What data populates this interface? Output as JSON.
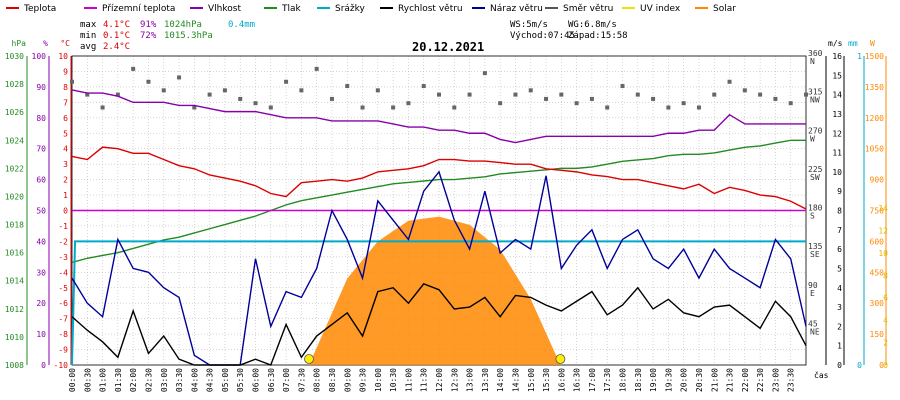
{
  "chart_data": {
    "type": "line",
    "title": "20.12.2021",
    "legend": [
      {
        "name": "Teplota",
        "color": "#dd0000"
      },
      {
        "name": "Přízemní teplota",
        "color": "#cc00cc"
      },
      {
        "name": "Vlhkost",
        "color": "#8800aa"
      },
      {
        "name": "Tlak",
        "color": "#228b22"
      },
      {
        "name": "Srážky",
        "color": "#00aacc"
      },
      {
        "name": "Rychlost větru",
        "color": "#000000"
      },
      {
        "name": "Náraz větru",
        "color": "#000099"
      },
      {
        "name": "Směr větru",
        "color": "#555555"
      },
      {
        "name": "UV index",
        "color": "#e6e600"
      },
      {
        "name": "Solar",
        "color": "#ff8800"
      }
    ],
    "stats": {
      "max_label": "max",
      "max_temp": "4.1°C",
      "max_hum": "91%",
      "max_press": "1024hPa",
      "rain": "0.4mm",
      "min_label": "min",
      "min_temp": "0.1°C",
      "min_hum": "72%",
      "min_press": "1015.3hPa",
      "avg_label": "avg",
      "avg_temp": "2.4°C",
      "ws": "WS:5m/s",
      "wg": "WG:6.8m/s",
      "sunrise": "Východ:07:45",
      "sunset": "Západ:15:58"
    },
    "axes": {
      "left": [
        {
          "unit": "hPa",
          "color": "#228b22",
          "ticks": [
            "1030",
            "1028",
            "1026",
            "1024",
            "1022",
            "1020",
            "1018",
            "1016",
            "1014",
            "1012",
            "1010",
            "1008"
          ]
        },
        {
          "unit": "%",
          "color": "#8800aa",
          "ticks": [
            "100",
            "90",
            "80",
            "70",
            "60",
            "50",
            "40",
            "30",
            "20",
            "10",
            "0"
          ]
        },
        {
          "unit": "°C",
          "color": "#dd0000",
          "ticks": [
            "10",
            "9",
            "8",
            "7",
            "6",
            "5",
            "4",
            "3",
            "2",
            "1",
            "0",
            "-1",
            "-2",
            "-3",
            "-4",
            "-5",
            "-6",
            "-7",
            "-8",
            "-9",
            "-10"
          ]
        }
      ],
      "right": [
        {
          "unit": "m/s",
          "color": "#000000",
          "ticks": [
            "16",
            "15",
            "14",
            "13",
            "12",
            "11",
            "10",
            "9",
            "8",
            "7",
            "6",
            "5",
            "4",
            "3",
            "2",
            "1",
            "0"
          ]
        },
        {
          "unit": "mm",
          "color": "#00aacc",
          "ticks": [
            "1",
            "0"
          ]
        },
        {
          "unit": "W",
          "color": "#ff8800",
          "ticks": [
            "1500",
            "1350",
            "1200",
            "1050",
            "900",
            "750",
            "600",
            "450",
            "300",
            "150",
            "0"
          ]
        }
      ],
      "wind_dir": [
        {
          "deg": "360",
          "dir": "N"
        },
        {
          "deg": "315",
          "dir": "NW"
        },
        {
          "deg": "270",
          "dir": "W"
        },
        {
          "deg": "225",
          "dir": "SW"
        },
        {
          "deg": "180",
          "dir": "S"
        },
        {
          "deg": "135",
          "dir": "SE"
        },
        {
          "deg": "90",
          "dir": "E"
        },
        {
          "deg": "45",
          "dir": "NE"
        }
      ],
      "uv_ticks": [
        "14",
        "12",
        "10",
        "8",
        "6",
        "4",
        "2",
        "0"
      ],
      "x_label": "čas",
      "x_ticks": [
        "00:00",
        "00:30",
        "01:00",
        "01:30",
        "02:00",
        "02:30",
        "03:00",
        "03:30",
        "04:00",
        "04:30",
        "05:00",
        "05:30",
        "06:00",
        "06:30",
        "07:00",
        "07:30",
        "08:00",
        "08:30",
        "09:00",
        "09:30",
        "10:00",
        "10:30",
        "11:00",
        "11:30",
        "12:00",
        "12:30",
        "13:00",
        "13:30",
        "14:00",
        "14:30",
        "15:00",
        "15:30",
        "16:00",
        "16:30",
        "17:00",
        "17:30",
        "18:00",
        "18:30",
        "19:00",
        "19:30",
        "20:00",
        "20:30",
        "21:00",
        "21:30",
        "22:00",
        "22:30",
        "23:00",
        "23:30"
      ]
    },
    "x_range_hours": [
      0,
      24
    ],
    "series": [
      {
        "name": "Teplota",
        "color": "#dd0000",
        "x": [
          0,
          0.5,
          1,
          1.5,
          2,
          2.5,
          3,
          3.5,
          4,
          4.5,
          5,
          5.5,
          6,
          6.5,
          7,
          7.5,
          8,
          8.5,
          9,
          9.5,
          10,
          10.5,
          11,
          11.5,
          12,
          12.5,
          13,
          13.5,
          14,
          14.5,
          15,
          15.5,
          16,
          16.5,
          17,
          17.5,
          18,
          18.5,
          19,
          19.5,
          20,
          20.5,
          21,
          21.5,
          22,
          22.5,
          23,
          23.5,
          24
        ],
        "y": [
          3.5,
          3.3,
          4.1,
          4.0,
          3.7,
          3.7,
          3.3,
          2.9,
          2.7,
          2.3,
          2.1,
          1.9,
          1.6,
          1.1,
          0.9,
          1.8,
          1.9,
          2.0,
          1.9,
          2.1,
          2.5,
          2.6,
          2.7,
          2.9,
          3.3,
          3.3,
          3.2,
          3.2,
          3.1,
          3.0,
          3.0,
          2.7,
          2.6,
          2.5,
          2.3,
          2.2,
          2.0,
          2.0,
          1.8,
          1.6,
          1.4,
          1.7,
          1.1,
          1.5,
          1.3,
          1.0,
          0.9,
          0.6,
          0.1
        ]
      },
      {
        "name": "Přízemní teplota",
        "color": "#cc00cc",
        "x": [
          0,
          24
        ],
        "y": [
          0,
          0
        ]
      },
      {
        "name": "Vlhkost",
        "color": "#8800aa",
        "x": [
          0,
          0.5,
          1,
          1.5,
          2,
          2.5,
          3,
          3.5,
          4,
          4.5,
          5,
          5.5,
          6,
          6.5,
          7,
          7.5,
          8,
          8.5,
          9,
          9.5,
          10,
          10.5,
          11,
          11.5,
          12,
          12.5,
          13,
          13.5,
          14,
          14.5,
          15,
          15.5,
          16,
          16.5,
          17,
          17.5,
          18,
          18.5,
          19,
          19.5,
          20,
          20.5,
          21,
          21.5,
          22,
          22.5,
          23,
          23.5,
          24
        ],
        "y": [
          89,
          88,
          88,
          87,
          85,
          85,
          85,
          84,
          84,
          83,
          82,
          82,
          82,
          81,
          80,
          80,
          80,
          79,
          79,
          79,
          79,
          78,
          77,
          77,
          76,
          76,
          75,
          75,
          73,
          72,
          73,
          74,
          74,
          74,
          74,
          74,
          74,
          74,
          74,
          75,
          75,
          76,
          76,
          81,
          78,
          78,
          78,
          78,
          78
        ]
      },
      {
        "name": "Tlak",
        "color": "#228b22",
        "x": [
          0,
          0.5,
          1,
          1.5,
          2,
          2.5,
          3,
          3.5,
          4,
          4.5,
          5,
          5.5,
          6,
          6.5,
          7,
          7.5,
          8,
          8.5,
          9,
          9.5,
          10,
          10.5,
          11,
          11.5,
          12,
          12.5,
          13,
          13.5,
          14,
          14.5,
          15,
          15.5,
          16,
          16.5,
          17,
          17.5,
          18,
          18.5,
          19,
          19.5,
          20,
          20.5,
          21,
          21.5,
          22,
          22.5,
          23,
          23.5,
          24
        ],
        "y": [
          1015.3,
          1015.6,
          1015.8,
          1016.0,
          1016.3,
          1016.6,
          1016.9,
          1017.1,
          1017.4,
          1017.7,
          1018.0,
          1018.3,
          1018.6,
          1019.0,
          1019.4,
          1019.7,
          1019.9,
          1020.1,
          1020.3,
          1020.5,
          1020.7,
          1020.9,
          1021.0,
          1021.1,
          1021.2,
          1021.2,
          1021.3,
          1021.4,
          1021.6,
          1021.7,
          1021.8,
          1021.9,
          1022.0,
          1022.0,
          1022.1,
          1022.3,
          1022.5,
          1022.6,
          1022.7,
          1022.9,
          1023.0,
          1023.0,
          1023.1,
          1023.3,
          1023.5,
          1023.6,
          1023.8,
          1024.0,
          1024.0
        ]
      },
      {
        "name": "Srážky",
        "color": "#00aacc",
        "x": [
          0,
          0.1,
          24
        ],
        "y": [
          0,
          0.4,
          0.4
        ]
      },
      {
        "name": "Rychlost větru",
        "color": "#000000",
        "x": [
          0,
          0.5,
          1,
          1.5,
          2,
          2.5,
          3,
          3.5,
          4,
          4.5,
          5,
          5.5,
          6,
          6.5,
          7,
          7.5,
          8,
          8.5,
          9,
          9.5,
          10,
          10.5,
          11,
          11.5,
          12,
          12.5,
          13,
          13.5,
          14,
          14.5,
          15,
          15.5,
          16,
          16.5,
          17,
          17.5,
          18,
          18.5,
          19,
          19.5,
          20,
          20.5,
          21,
          21.5,
          22,
          22.5,
          23,
          23.5,
          24
        ],
        "y": [
          2.5,
          1.8,
          1.2,
          0.4,
          2.8,
          0.6,
          1.5,
          0.3,
          0,
          0,
          0,
          0,
          0.3,
          0,
          2.1,
          0.4,
          1.5,
          2.1,
          2.7,
          1.5,
          3.8,
          4.0,
          3.2,
          4.2,
          3.9,
          2.9,
          3.0,
          3.5,
          2.5,
          3.6,
          3.5,
          3.1,
          2.8,
          3.3,
          3.8,
          2.6,
          3.1,
          4.0,
          2.9,
          3.4,
          2.7,
          2.5,
          3.0,
          3.1,
          2.5,
          1.9,
          3.3,
          2.5,
          1.0
        ]
      },
      {
        "name": "Náraz větru",
        "color": "#000099",
        "x": [
          0,
          0.5,
          1,
          1.5,
          2,
          2.5,
          3,
          3.5,
          4,
          4.5,
          5,
          5.5,
          6,
          6.5,
          7,
          7.5,
          8,
          8.5,
          9,
          9.5,
          10,
          10.5,
          11,
          11.5,
          12,
          12.5,
          13,
          13.5,
          14,
          14.5,
          15,
          15.5,
          16,
          16.5,
          17,
          17.5,
          18,
          18.5,
          19,
          19.5,
          20,
          20.5,
          21,
          21.5,
          22,
          22.5,
          23,
          23.5,
          24
        ],
        "y": [
          4.5,
          3.2,
          2.5,
          6.5,
          5.0,
          4.8,
          4.0,
          3.5,
          0.5,
          0,
          0,
          0,
          5.5,
          2.0,
          3.8,
          3.5,
          5.0,
          8.0,
          6.5,
          4.5,
          8.5,
          7.5,
          6.5,
          9.0,
          10.0,
          7.5,
          6.0,
          9.0,
          5.8,
          6.5,
          6.0,
          9.8,
          5.0,
          6.2,
          7.0,
          5.0,
          6.5,
          7.0,
          5.5,
          5.0,
          6.0,
          4.5,
          6.0,
          5.0,
          4.5,
          4.0,
          6.5,
          5.5,
          2.0
        ]
      },
      {
        "name": "Směr větru",
        "color": "#555555",
        "x": [
          0,
          0.5,
          1,
          1.5,
          2,
          2.5,
          3,
          3.5,
          4,
          4.5,
          5,
          5.5,
          6,
          6.5,
          7,
          7.5,
          8,
          8.5,
          9,
          9.5,
          10,
          10.5,
          11,
          11.5,
          12,
          12.5,
          13,
          13.5,
          14,
          14.5,
          15,
          15.5,
          16,
          16.5,
          17,
          17.5,
          18,
          18.5,
          19,
          19.5,
          20,
          20.5,
          21,
          21.5,
          22,
          22.5,
          23,
          23.5,
          24
        ],
        "y": [
          330,
          315,
          300,
          315,
          345,
          330,
          320,
          335,
          300,
          315,
          320,
          310,
          305,
          300,
          330,
          320,
          345,
          310,
          325,
          300,
          320,
          300,
          305,
          325,
          315,
          300,
          315,
          340,
          305,
          315,
          320,
          310,
          315,
          305,
          310,
          300,
          325,
          315,
          310,
          300,
          305,
          300,
          315,
          330,
          320,
          315,
          310,
          305,
          315
        ]
      },
      {
        "name": "Solar",
        "color": "#ff8800",
        "x": [
          7.75,
          9,
          10,
          11,
          12,
          13,
          14,
          15,
          15.97
        ],
        "y": [
          0,
          420,
          600,
          700,
          720,
          680,
          560,
          320,
          0
        ]
      }
    ],
    "sun_markers_hours": [
      7.75,
      15.97
    ]
  }
}
